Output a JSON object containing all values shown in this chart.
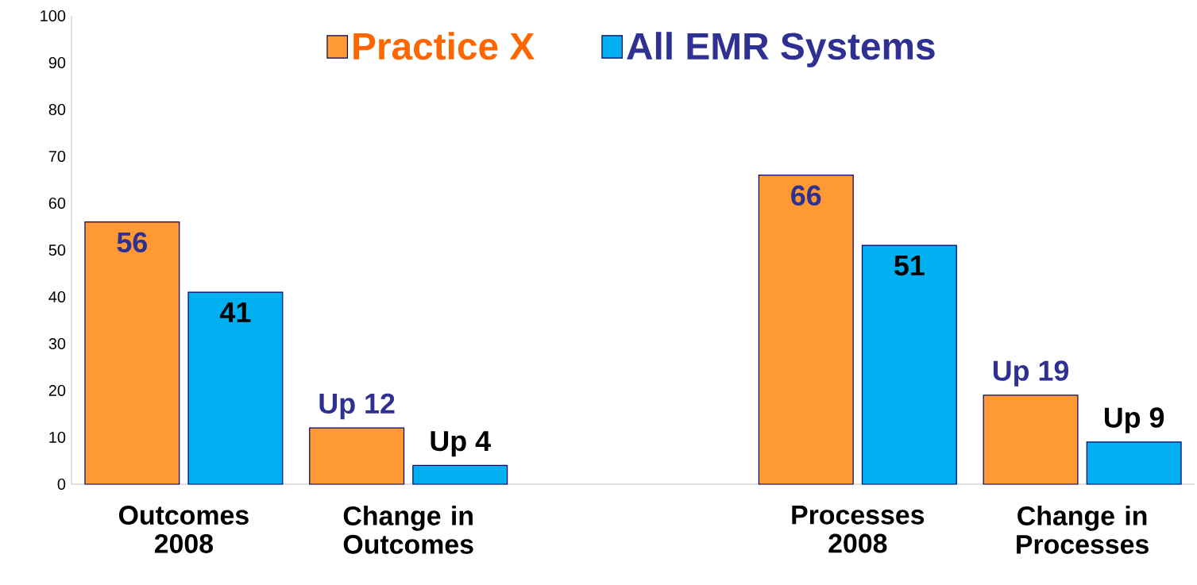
{
  "chart_data": {
    "type": "bar",
    "categories": [
      "Outcomes 2008",
      "Change in Outcomes",
      null,
      "Processes 2008",
      "Change in Processes"
    ],
    "series": [
      {
        "name": "Practice X",
        "color": "#ff9933",
        "values": [
          56,
          12,
          null,
          66,
          19
        ],
        "value_labels": [
          "56",
          "Up 12",
          null,
          "66",
          "Up 19"
        ]
      },
      {
        "name": "All EMR Systems",
        "color": "#00b0f0",
        "values": [
          41,
          4,
          null,
          51,
          9
        ],
        "value_labels": [
          "41",
          "Up 4",
          null,
          "51",
          "Up 9"
        ]
      }
    ],
    "ylim": [
      0,
      100
    ],
    "yticks": [
      0,
      10,
      20,
      30,
      40,
      50,
      60,
      70,
      80,
      90,
      100
    ],
    "legend": "top",
    "grid": false
  }
}
